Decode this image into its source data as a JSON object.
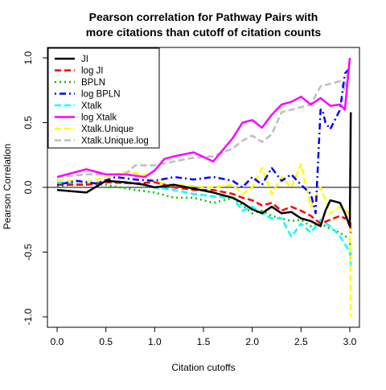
{
  "chart_data": {
    "type": "line",
    "title_line1": "Pearson correlation for Pathway Pairs with",
    "title_line2": "more citations than cutoff of citation counts",
    "xlabel": "Citation cutoffs",
    "ylabel": "Pearson Correlation",
    "xlim": [
      0,
      3
    ],
    "ylim": [
      -1,
      1
    ],
    "x_ticks": [
      0,
      0.5,
      1,
      1.5,
      2,
      2.5,
      3
    ],
    "x_tick_labels": [
      "0.0",
      "0.5",
      "1.0",
      "1.5",
      "2.0",
      "2.5",
      "3.0"
    ],
    "y_ticks": [
      -1,
      -0.5,
      0,
      0.5,
      1
    ],
    "y_tick_labels": [
      "-1.0",
      "-0.5",
      "0.0",
      "0.5",
      "1.0"
    ],
    "reference_line": 0,
    "legend_position": "top-left",
    "series": [
      {
        "name": "JI",
        "color": "#000000",
        "dash": "solid",
        "x": [
          0,
          0.3,
          0.5,
          0.7,
          0.9,
          1.0,
          1.2,
          1.4,
          1.6,
          1.8,
          1.9,
          2.0,
          2.1,
          2.2,
          2.3,
          2.4,
          2.5,
          2.6,
          2.7,
          2.75,
          2.8,
          2.9,
          2.95,
          3.0,
          3.01
        ],
        "y": [
          -0.02,
          -0.04,
          0.05,
          0.04,
          0.02,
          0.0,
          0.02,
          -0.01,
          -0.04,
          -0.08,
          -0.12,
          -0.17,
          -0.2,
          -0.15,
          -0.2,
          -0.19,
          -0.24,
          -0.26,
          -0.3,
          -0.18,
          -0.1,
          -0.12,
          -0.2,
          -0.3,
          0.58
        ]
      },
      {
        "name": "log JI",
        "color": "#ff0000",
        "dash": "dashed",
        "x": [
          0,
          0.3,
          0.5,
          0.8,
          1.0,
          1.2,
          1.4,
          1.6,
          1.8,
          1.9,
          2.0,
          2.1,
          2.2,
          2.3,
          2.4,
          2.5,
          2.6,
          2.7,
          2.8,
          2.9,
          2.95,
          3.0,
          3.01
        ],
        "y": [
          0.02,
          0.02,
          0.04,
          0.03,
          0.04,
          0.0,
          -0.02,
          -0.02,
          -0.05,
          -0.08,
          -0.1,
          -0.14,
          -0.12,
          -0.18,
          -0.15,
          -0.18,
          -0.22,
          -0.28,
          -0.25,
          -0.22,
          -0.24,
          -0.2,
          -0.35
        ]
      },
      {
        "name": "BPLN",
        "color": "#00c000",
        "dash": "dotted",
        "x": [
          0,
          0.3,
          0.5,
          0.8,
          1.0,
          1.2,
          1.4,
          1.6,
          1.8,
          1.9,
          2.0,
          2.1,
          2.2,
          2.3,
          2.4,
          2.5,
          2.6,
          2.7,
          2.8,
          2.9,
          3.0,
          3.01
        ],
        "y": [
          0.01,
          0.03,
          0.02,
          -0.02,
          -0.04,
          -0.08,
          -0.08,
          -0.12,
          -0.08,
          -0.14,
          -0.2,
          -0.18,
          -0.22,
          -0.24,
          -0.26,
          -0.25,
          -0.3,
          -0.28,
          -0.32,
          -0.35,
          -0.4,
          -0.55
        ]
      },
      {
        "name": "log BPLN",
        "color": "#0000ff",
        "dash": "dashdot",
        "x": [
          0,
          0.2,
          0.4,
          0.6,
          0.8,
          1.0,
          1.2,
          1.4,
          1.6,
          1.8,
          1.9,
          2.0,
          2.1,
          2.2,
          2.3,
          2.4,
          2.5,
          2.6,
          2.65,
          2.7,
          2.72,
          2.75,
          2.8,
          2.9,
          2.95,
          3.0
        ],
        "y": [
          0.02,
          0.05,
          0.03,
          0.08,
          0.06,
          0.05,
          0.08,
          0.06,
          0.08,
          0.05,
          0.0,
          0.08,
          0.02,
          0.15,
          0.05,
          0.1,
          0.02,
          -0.05,
          -0.2,
          0.6,
          0.6,
          0.5,
          0.45,
          0.6,
          0.88,
          0.92
        ]
      },
      {
        "name": "Xtalk",
        "color": "#00ffff",
        "dash": "dashed",
        "x": [
          0,
          0.3,
          0.5,
          0.8,
          1.0,
          1.2,
          1.4,
          1.6,
          1.8,
          1.9,
          2.0,
          2.1,
          2.2,
          2.3,
          2.4,
          2.5,
          2.6,
          2.7,
          2.8,
          2.9,
          3.0,
          3.01
        ],
        "y": [
          0.04,
          0.02,
          0.05,
          0.03,
          0.0,
          -0.02,
          -0.05,
          -0.07,
          -0.08,
          -0.18,
          -0.15,
          -0.2,
          -0.24,
          -0.24,
          -0.38,
          -0.28,
          -0.35,
          -0.25,
          -0.3,
          -0.38,
          -0.5,
          -0.6
        ]
      },
      {
        "name": "log Xtalk",
        "color": "#ff00ff",
        "dash": "solid",
        "x": [
          0,
          0.3,
          0.5,
          0.7,
          0.9,
          1.0,
          1.1,
          1.2,
          1.4,
          1.6,
          1.8,
          1.9,
          2.0,
          2.1,
          2.2,
          2.3,
          2.4,
          2.5,
          2.6,
          2.7,
          2.8,
          2.9,
          2.95,
          3.0
        ],
        "y": [
          0.08,
          0.14,
          0.1,
          0.1,
          0.08,
          0.13,
          0.22,
          0.24,
          0.27,
          0.2,
          0.38,
          0.5,
          0.52,
          0.46,
          0.56,
          0.64,
          0.66,
          0.7,
          0.64,
          0.69,
          0.63,
          0.64,
          0.6,
          1.0
        ]
      },
      {
        "name": "Xtalk.Unique",
        "color": "#ffff00",
        "dash": "dashed",
        "x": [
          0,
          0.3,
          0.5,
          0.7,
          0.9,
          1.0,
          1.2,
          1.4,
          1.6,
          1.8,
          1.9,
          2.0,
          2.1,
          2.2,
          2.3,
          2.4,
          2.5,
          2.6,
          2.7,
          2.8,
          2.9,
          3.0,
          3.01
        ],
        "y": [
          0.06,
          0.04,
          0.08,
          0.12,
          0.1,
          0.04,
          0.02,
          0.01,
          0.0,
          0.02,
          -0.05,
          0.0,
          0.15,
          -0.05,
          0.08,
          0.0,
          0.18,
          -0.15,
          0.0,
          -0.2,
          -0.15,
          -0.2,
          -1.0
        ]
      },
      {
        "name": "Xtalk.Unique.log",
        "color": "#bebebe",
        "dash": "dashed",
        "x": [
          0,
          0.3,
          0.5,
          0.7,
          0.8,
          0.9,
          1.0,
          1.2,
          1.4,
          1.6,
          1.8,
          1.9,
          2.0,
          2.1,
          2.2,
          2.3,
          2.4,
          2.5,
          2.6,
          2.7,
          2.8,
          2.9,
          2.95,
          3.0
        ],
        "y": [
          0.08,
          0.1,
          0.1,
          0.1,
          0.17,
          0.17,
          0.17,
          0.2,
          0.23,
          0.24,
          0.3,
          0.36,
          0.4,
          0.35,
          0.41,
          0.58,
          0.6,
          0.62,
          0.64,
          0.78,
          0.8,
          0.82,
          0.75,
          0.97
        ]
      }
    ]
  }
}
